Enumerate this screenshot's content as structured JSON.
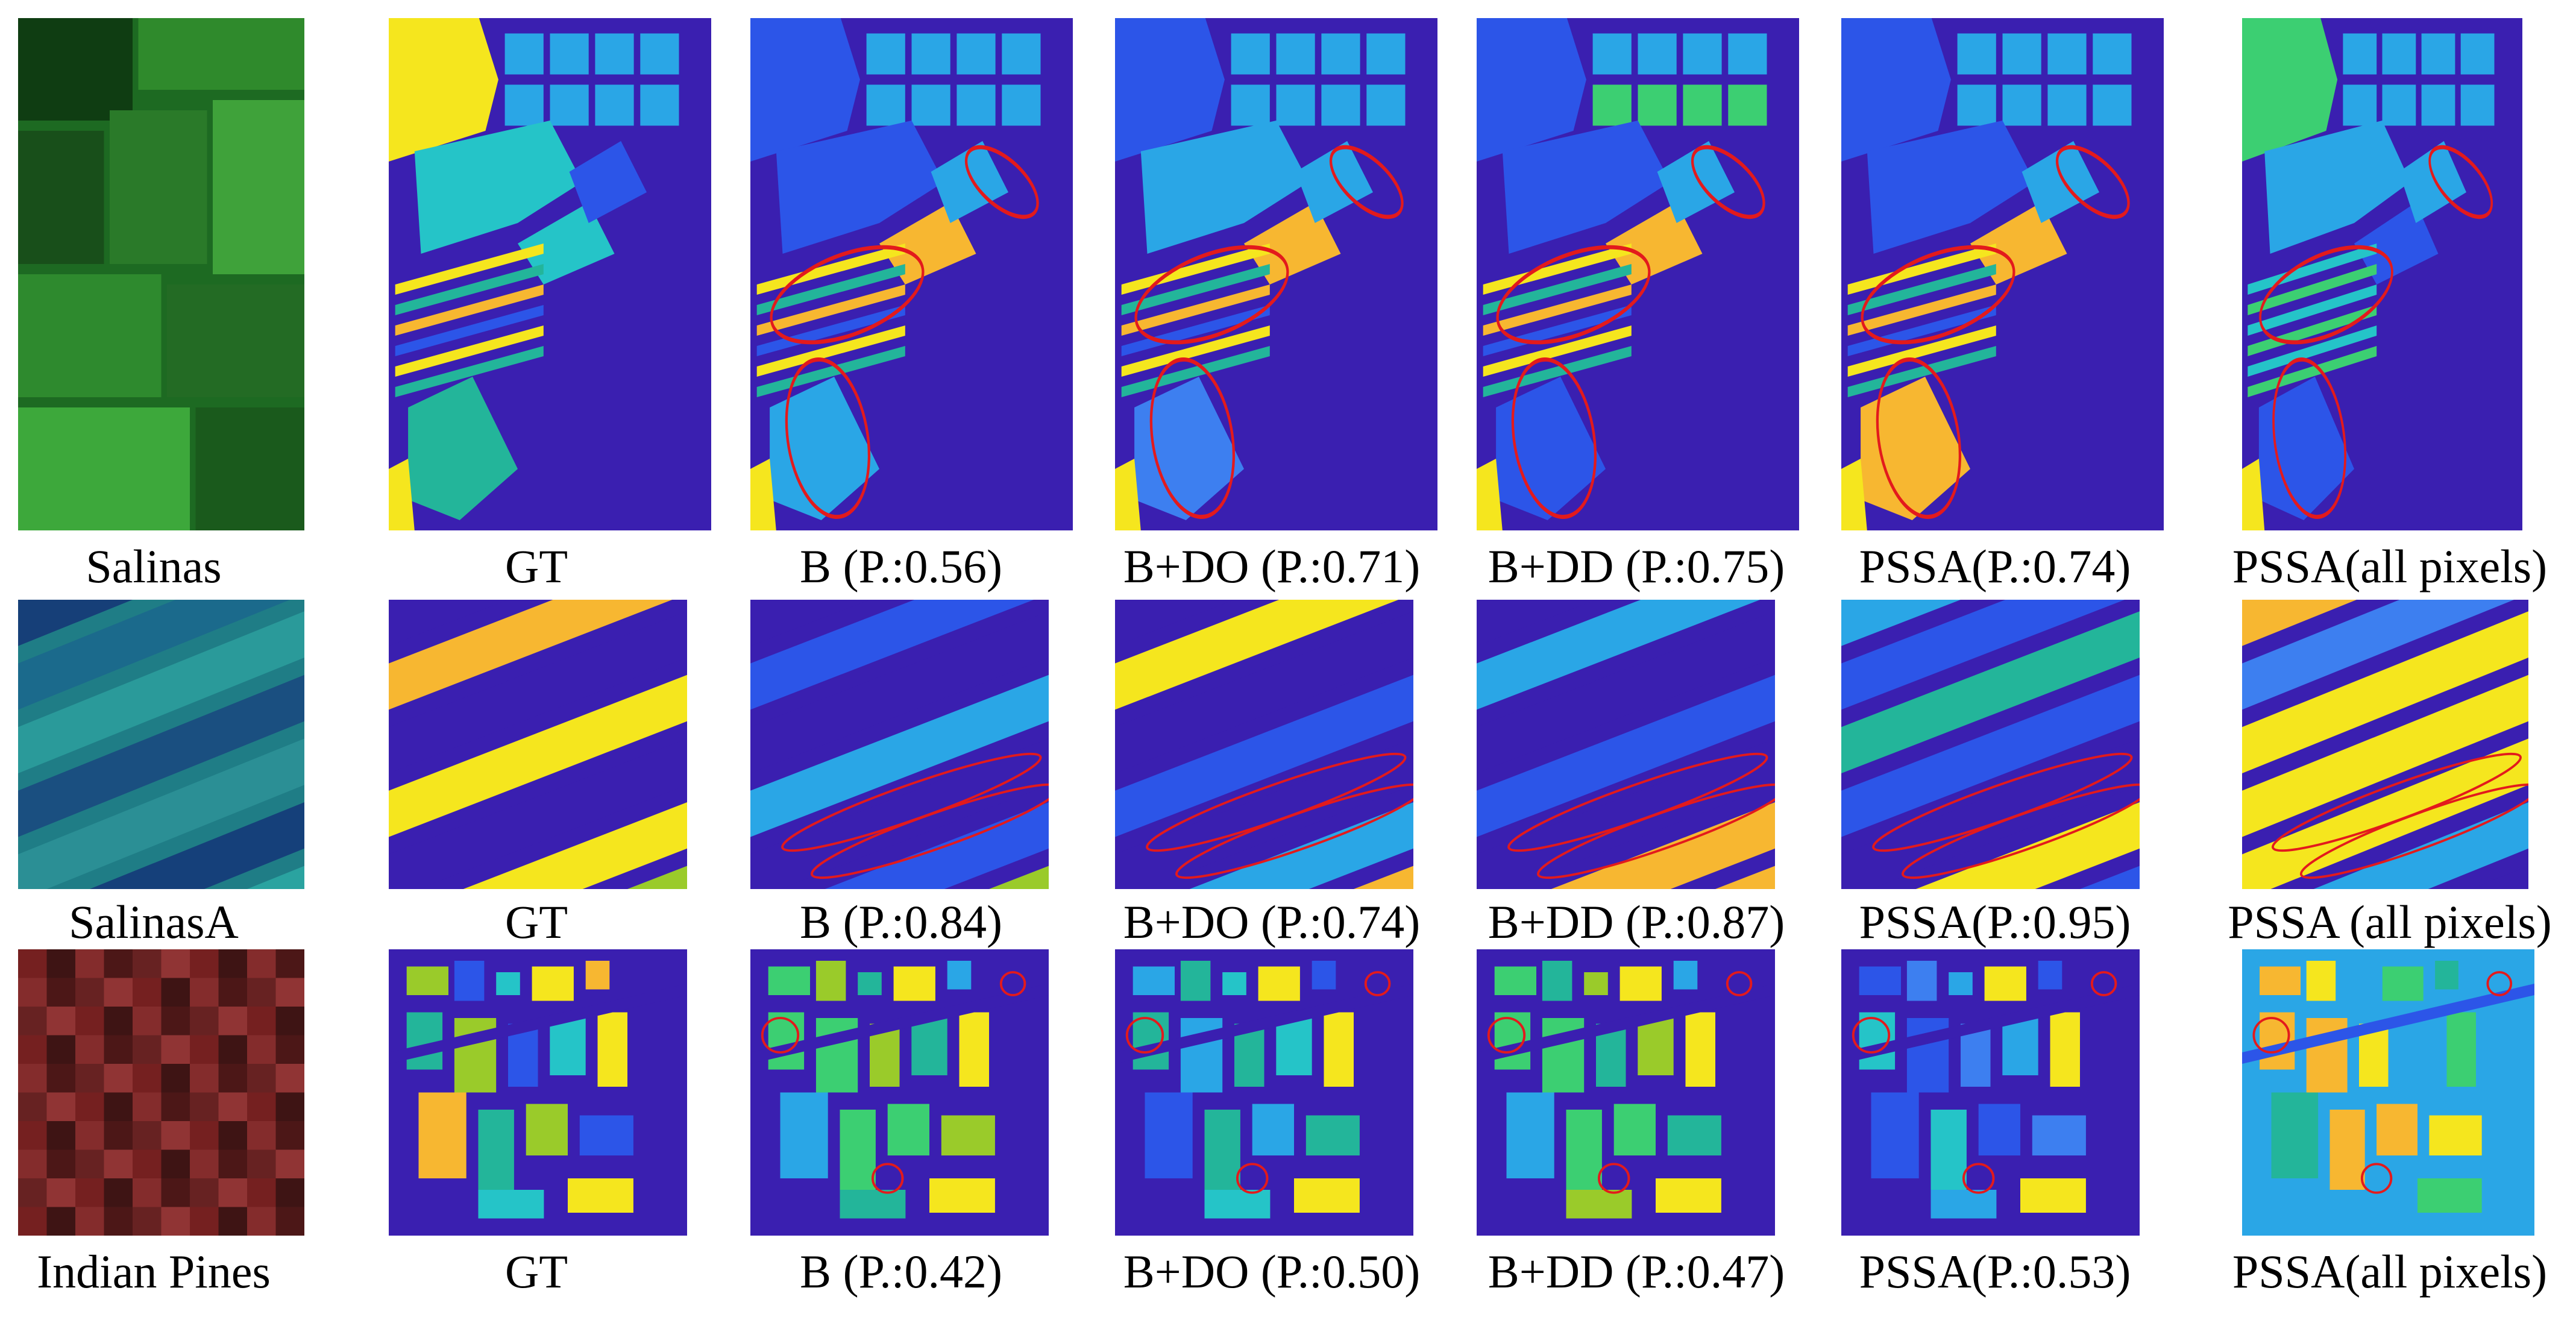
{
  "colors": {
    "background": "#3a1fb0",
    "blue": "#2c55e8",
    "midblue": "#3d7ff0",
    "lightblue": "#2aa6e6",
    "cyan": "#25c4c8",
    "teal": "#23b59a",
    "green": "#3ccf72",
    "lime": "#9acb2a",
    "yellow": "#f5e61e",
    "orange": "#f7b731",
    "highlight": "#e31a1c"
  },
  "rows": [
    {
      "dataset": "Salinas",
      "captions": [
        "Salinas",
        "GT",
        "B (P.:0.56)",
        "B+DO (P.:0.71)",
        "B+DD (P.:0.75)",
        "PSSA(P.:0.74)",
        "PSSA(all pixels)"
      ]
    },
    {
      "dataset": "SalinasA",
      "captions": [
        "SalinasA",
        "GT",
        "B (P.:0.84)",
        "B+DO (P.:0.74)",
        "B+DD (P.:0.87)",
        "PSSA(P.:0.95)",
        "PSSA (all pixels)"
      ]
    },
    {
      "dataset": "Indian Pines",
      "captions": [
        "Indian Pines",
        "GT",
        "B (P.:0.42)",
        "B+DO (P.:0.50)",
        "B+DD (P.:0.47)",
        "PSSA(P.:0.53)",
        "PSSA(all pixels)"
      ]
    }
  ]
}
